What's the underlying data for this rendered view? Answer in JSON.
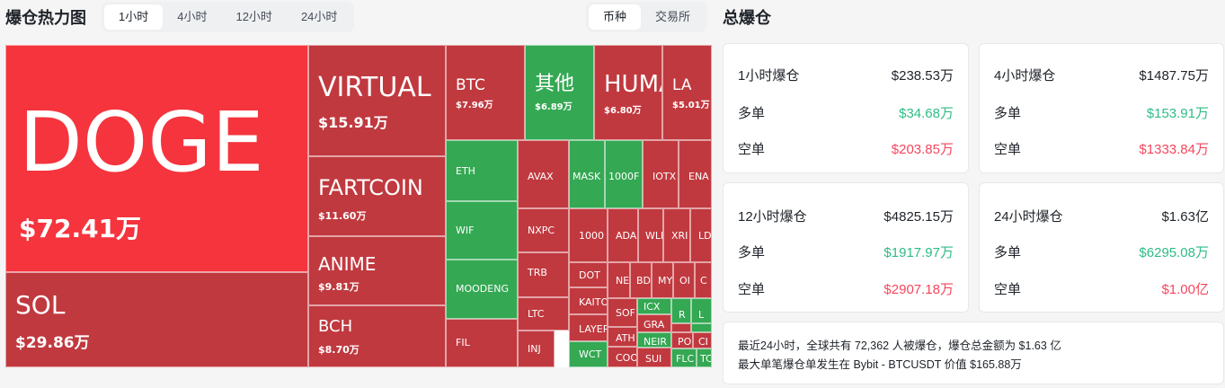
{
  "header": {
    "title": "爆仓热力图",
    "time_tabs": [
      "1小时",
      "4小时",
      "12小时",
      "24小时"
    ],
    "active_time_tab": 0,
    "view_tabs": [
      "币种",
      "交易所"
    ],
    "active_view_tab": 0
  },
  "colors": {
    "red_bright": "#f5343d",
    "red": "#c0393f",
    "green": "#34a853",
    "up_text": "#2ebd85",
    "down_text": "#f6465d"
  },
  "heatmap": [
    {
      "label": "DOGE",
      "value": "$72.41万",
      "color": "#f5343d"
    },
    {
      "label": "SOL",
      "value": "$29.86万",
      "color": "#c0393f"
    },
    {
      "label": "VIRTUAL",
      "value": "$15.91万",
      "color": "#c0393f"
    },
    {
      "label": "FARTCOIN",
      "value": "$11.60万",
      "color": "#c0393f"
    },
    {
      "label": "ANIME",
      "value": "$9.81万",
      "color": "#c0393f"
    },
    {
      "label": "BCH",
      "value": "$8.70万",
      "color": "#c0393f"
    },
    {
      "label": "BTC",
      "value": "$7.96万",
      "color": "#c0393f"
    },
    {
      "label": "其他",
      "value": "$6.89万",
      "color": "#34a853"
    },
    {
      "label": "HUMA",
      "value": "$6.80万",
      "color": "#c0393f"
    },
    {
      "label": "LA",
      "value": "$5.01万",
      "color": "#c0393f"
    },
    {
      "label": "ETH",
      "value": "",
      "color": "#34a853"
    },
    {
      "label": "WIF",
      "value": "",
      "color": "#34a853"
    },
    {
      "label": "MOODENG",
      "value": "",
      "color": "#34a853"
    },
    {
      "label": "FIL",
      "value": "",
      "color": "#c0393f"
    },
    {
      "label": "AVAX",
      "value": "",
      "color": "#c0393f"
    },
    {
      "label": "MASK",
      "value": "",
      "color": "#34a853"
    },
    {
      "label": "1000F",
      "value": "",
      "color": "#34a853"
    },
    {
      "label": "IOTX",
      "value": "",
      "color": "#c0393f"
    },
    {
      "label": "ENA",
      "value": "",
      "color": "#c0393f"
    },
    {
      "label": "NXPC",
      "value": "",
      "color": "#c0393f"
    },
    {
      "label": "1000",
      "value": "",
      "color": "#c0393f"
    },
    {
      "label": "ADA",
      "value": "",
      "color": "#c0393f"
    },
    {
      "label": "WLI",
      "value": "",
      "color": "#c0393f"
    },
    {
      "label": "XRI",
      "value": "",
      "color": "#c0393f"
    },
    {
      "label": "LD",
      "value": "",
      "color": "#c0393f"
    },
    {
      "label": "TRB",
      "value": "",
      "color": "#c0393f"
    },
    {
      "label": "DOT",
      "value": "",
      "color": "#c0393f"
    },
    {
      "label": "NE",
      "value": "",
      "color": "#c0393f"
    },
    {
      "label": "BD",
      "value": "",
      "color": "#c0393f"
    },
    {
      "label": "MY",
      "value": "",
      "color": "#c0393f"
    },
    {
      "label": "OI",
      "value": "",
      "color": "#c0393f"
    },
    {
      "label": "C",
      "value": "",
      "color": "#c0393f"
    },
    {
      "label": "LTC",
      "value": "",
      "color": "#c0393f"
    },
    {
      "label": "KAITO",
      "value": "",
      "color": "#c0393f"
    },
    {
      "label": "SOF",
      "value": "",
      "color": "#c0393f"
    },
    {
      "label": "ICX",
      "value": "",
      "color": "#34a853"
    },
    {
      "label": "R",
      "value": "",
      "color": "#34a853"
    },
    {
      "label": "L",
      "value": "",
      "color": "#34a853"
    },
    {
      "label": "",
      "value": "",
      "color": "#c0393f"
    },
    {
      "label": "LAYER",
      "value": "",
      "color": "#c0393f"
    },
    {
      "label": "GRA",
      "value": "",
      "color": "#c0393f"
    },
    {
      "label": "",
      "value": "",
      "color": "#c0393f"
    },
    {
      "label": "",
      "value": "",
      "color": "#34a853"
    },
    {
      "label": "",
      "value": "",
      "color": "#c0393f"
    },
    {
      "label": "INJ",
      "value": "",
      "color": "#c0393f"
    },
    {
      "label": "ATH",
      "value": "",
      "color": "#c0393f"
    },
    {
      "label": "NEIR",
      "value": "",
      "color": "#34a853"
    },
    {
      "label": "POI",
      "value": "",
      "color": "#c0393f"
    },
    {
      "label": "CI",
      "value": "",
      "color": "#c0393f"
    },
    {
      "label": "WCT",
      "value": "",
      "color": "#34a853"
    },
    {
      "label": "COO",
      "value": "",
      "color": "#c0393f"
    },
    {
      "label": "SUI",
      "value": "",
      "color": "#c0393f"
    },
    {
      "label": "FLC",
      "value": "",
      "color": "#34a853"
    },
    {
      "label": "TC",
      "value": "",
      "color": "#34a853"
    }
  ],
  "panel": {
    "title": "总爆仓",
    "cards": [
      {
        "label": "1小时爆仓",
        "total": "$238.53万",
        "long_label": "多单",
        "long": "$34.68万",
        "short_label": "空单",
        "short": "$203.85万"
      },
      {
        "label": "4小时爆仓",
        "total": "$1487.75万",
        "long_label": "多单",
        "long": "$153.91万",
        "short_label": "空单",
        "short": "$1333.84万"
      },
      {
        "label": "12小时爆仓",
        "total": "$4825.15万",
        "long_label": "多单",
        "long": "$1917.97万",
        "short_label": "空单",
        "short": "$2907.18万"
      },
      {
        "label": "24小时爆仓",
        "total": "$1.63亿",
        "long_label": "多单",
        "long": "$6295.08万",
        "short_label": "空单",
        "short": "$1.00亿"
      }
    ],
    "summary_line1": "最近24小时，全球共有 72,362 人被爆仓，爆仓总金额为 $1.63 亿",
    "summary_line2": "最大单笔爆仓单发生在 Bybit - BTCUSDT 价值 $165.88万"
  }
}
